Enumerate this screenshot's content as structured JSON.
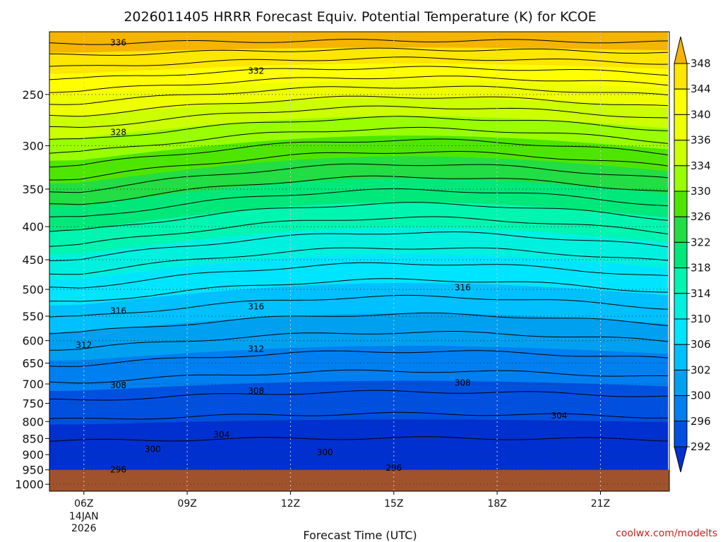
{
  "chart_data": {
    "type": "heatmap",
    "title": "2026011405 HRRR Forecast Equiv. Potential Temperature (K) for KCOE",
    "xlabel": "Forecast Time (UTC)",
    "ylabel": "",
    "credit": "coolwx.com/modelts",
    "x_ticks": [
      {
        "label": "06Z",
        "sub": [
          "14JAN",
          "2026"
        ],
        "hour": 6
      },
      {
        "label": "09Z",
        "sub": [],
        "hour": 9
      },
      {
        "label": "12Z",
        "sub": [],
        "hour": 12
      },
      {
        "label": "15Z",
        "sub": [],
        "hour": 15
      },
      {
        "label": "18Z",
        "sub": [],
        "hour": 18
      },
      {
        "label": "21Z",
        "sub": [],
        "hour": 21
      }
    ],
    "x_range_hours": [
      5,
      23
    ],
    "y_ticks": [
      250,
      300,
      350,
      400,
      450,
      500,
      550,
      600,
      650,
      700,
      750,
      800,
      850,
      900,
      950,
      1000
    ],
    "y_range_hpa": [
      200,
      1025
    ],
    "y_scale": "log-pressure",
    "ground_top_hpa": 950,
    "colorbar": {
      "labels": [
        348,
        344,
        340,
        336,
        334,
        330,
        326,
        322,
        318,
        314,
        310,
        306,
        302,
        300,
        296,
        292
      ],
      "colors": [
        "#f4b400",
        "#fde600",
        "#ffff00",
        "#eeff00",
        "#ccff00",
        "#99ff00",
        "#4ee600",
        "#22dd44",
        "#00e87a",
        "#00f5b0",
        "#00f0e0",
        "#00e5ff",
        "#00c0ff",
        "#00a0f0",
        "#0080f0",
        "#0050e0",
        "#0030d0"
      ]
    },
    "contour_labels": [
      {
        "value": "336",
        "hour": 7.0,
        "hpa": 208
      },
      {
        "value": "332",
        "hour": 11.0,
        "hpa": 230
      },
      {
        "value": "328",
        "hour": 7.0,
        "hpa": 286
      },
      {
        "value": "316",
        "hour": 7.0,
        "hpa": 540
      },
      {
        "value": "316",
        "hour": 11.0,
        "hpa": 532
      },
      {
        "value": "316",
        "hour": 17.0,
        "hpa": 497
      },
      {
        "value": "312",
        "hour": 6.0,
        "hpa": 610
      },
      {
        "value": "312",
        "hour": 11.0,
        "hpa": 618
      },
      {
        "value": "308",
        "hour": 7.0,
        "hpa": 703
      },
      {
        "value": "308",
        "hour": 11.0,
        "hpa": 718
      },
      {
        "value": "308",
        "hour": 17.0,
        "hpa": 697
      },
      {
        "value": "304",
        "hour": 10.0,
        "hpa": 838
      },
      {
        "value": "304",
        "hour": 19.8,
        "hpa": 784
      },
      {
        "value": "300",
        "hour": 8.0,
        "hpa": 883
      },
      {
        "value": "300",
        "hour": 13.0,
        "hpa": 893
      },
      {
        "value": "296",
        "hour": 7.0,
        "hpa": 950
      },
      {
        "value": "296",
        "hour": 15.0,
        "hpa": 943
      }
    ]
  }
}
